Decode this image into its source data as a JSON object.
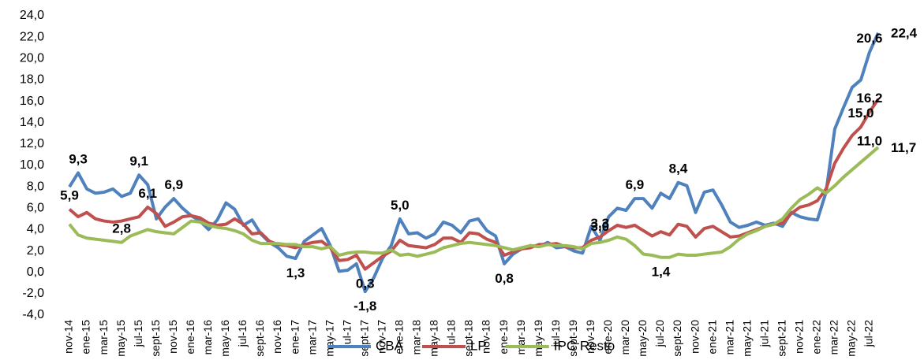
{
  "chart_data": {
    "type": "line",
    "categories": [
      "nov-14",
      null,
      "ene-15",
      null,
      "mar-15",
      null,
      "may-15",
      null,
      "jul-15",
      null,
      "sept-15",
      null,
      "nov-15",
      null,
      "ene-16",
      null,
      "mar-16",
      null,
      "may-16",
      null,
      "jul-16",
      null,
      "sept-16",
      null,
      "nov-16",
      null,
      "ene-17",
      null,
      "mar-17",
      null,
      "may-17",
      null,
      "jul-17",
      null,
      "sept-17",
      null,
      "nov-17",
      null,
      "ene-18",
      null,
      "mar-18",
      null,
      "may-18",
      null,
      "jul-18",
      null,
      "sept-18",
      null,
      "nov-18",
      null,
      "ene-19",
      null,
      "mar-19",
      null,
      "may-19",
      null,
      "jul-19",
      null,
      "sept-19",
      null,
      "nov-19",
      null,
      "ene-20",
      null,
      "mar-20",
      null,
      "may-20",
      null,
      "jul-20",
      null,
      "sept-20",
      null,
      "nov-20",
      null,
      "ene-21",
      null,
      "mar-21",
      null,
      "may-21",
      null,
      "jul-21",
      null,
      "sept-21",
      null,
      "nov-21",
      null,
      "ene-22",
      null,
      "mar-22",
      null,
      "may-22",
      null,
      "jul-22",
      null
    ],
    "series": [
      {
        "name": "CBA",
        "color": "#4f81bd",
        "values": [
          8.0,
          9.3,
          7.8,
          7.4,
          7.5,
          7.8,
          7.1,
          7.4,
          9.1,
          8.2,
          5.0,
          6.1,
          6.9,
          6.0,
          5.3,
          4.8,
          4.0,
          4.9,
          6.5,
          5.9,
          4.4,
          4.9,
          3.6,
          2.8,
          2.3,
          1.5,
          1.3,
          2.9,
          3.5,
          4.1,
          2.5,
          0.1,
          0.2,
          0.8,
          -1.8,
          -0.5,
          1.3,
          2.5,
          5.0,
          3.6,
          3.7,
          3.2,
          3.6,
          4.7,
          4.4,
          3.7,
          4.8,
          5.0,
          3.9,
          3.4,
          0.8,
          1.7,
          2.2,
          2.5,
          2.4,
          2.8,
          2.3,
          2.4,
          2.0,
          1.8,
          4.3,
          3.0,
          5.2,
          6.0,
          5.8,
          6.9,
          6.9,
          6.0,
          7.4,
          6.9,
          8.4,
          8.1,
          5.6,
          7.5,
          7.7,
          6.3,
          4.7,
          4.2,
          4.4,
          4.7,
          4.4,
          4.6,
          4.3,
          5.6,
          5.2,
          5.0,
          4.9,
          7.5,
          13.4,
          15.4,
          17.3,
          18.0,
          20.6,
          22.4
        ],
        "value_labels": [
          null,
          "9,3",
          null,
          null,
          null,
          null,
          null,
          null,
          "9,1",
          null,
          null,
          null,
          "6,9",
          null,
          null,
          null,
          null,
          null,
          null,
          null,
          null,
          null,
          null,
          null,
          null,
          null,
          "1,3",
          null,
          null,
          null,
          null,
          null,
          null,
          null,
          "-1,8",
          null,
          null,
          null,
          "5,0",
          null,
          null,
          null,
          null,
          null,
          null,
          null,
          null,
          null,
          null,
          null,
          "0,8",
          null,
          null,
          null,
          null,
          null,
          null,
          null,
          null,
          null,
          null,
          "3,0",
          null,
          null,
          null,
          "6,9",
          null,
          null,
          null,
          null,
          "8,4",
          null,
          null,
          null,
          null,
          null,
          null,
          null,
          null,
          null,
          null,
          null,
          null,
          null,
          null,
          null,
          null,
          null,
          null,
          null,
          null,
          null,
          "20,6",
          "22,4"
        ]
      },
      {
        "name": "LP",
        "color": "#c0504d",
        "values": [
          5.9,
          5.2,
          5.6,
          5.0,
          4.8,
          4.7,
          4.8,
          5.0,
          5.2,
          6.1,
          5.5,
          4.3,
          4.7,
          5.2,
          5.3,
          5.1,
          4.6,
          4.4,
          4.5,
          5.0,
          4.5,
          3.6,
          3.7,
          2.9,
          2.6,
          2.5,
          2.3,
          2.6,
          2.8,
          2.9,
          2.3,
          1.1,
          1.2,
          1.6,
          0.3,
          0.9,
          1.5,
          2.0,
          3.0,
          2.5,
          2.4,
          2.3,
          2.6,
          3.2,
          3.2,
          2.8,
          3.7,
          3.6,
          3.1,
          2.8,
          1.6,
          1.9,
          2.2,
          2.3,
          2.6,
          2.6,
          2.7,
          2.4,
          2.3,
          2.3,
          3.0,
          3.3,
          3.9,
          4.4,
          4.2,
          4.4,
          3.9,
          3.4,
          3.8,
          3.5,
          4.5,
          4.3,
          3.3,
          4.1,
          4.3,
          3.8,
          3.3,
          3.4,
          3.7,
          4.0,
          4.3,
          4.5,
          4.6,
          5.5,
          6.1,
          6.3,
          6.7,
          7.8,
          10.2,
          11.6,
          12.8,
          13.6,
          15.0,
          16.2
        ],
        "value_labels": [
          "5,9",
          null,
          null,
          null,
          null,
          null,
          null,
          null,
          null,
          "6,1",
          null,
          null,
          null,
          null,
          null,
          null,
          null,
          null,
          null,
          null,
          null,
          null,
          null,
          null,
          null,
          null,
          null,
          null,
          null,
          null,
          null,
          null,
          null,
          null,
          "0,3",
          null,
          null,
          null,
          null,
          null,
          null,
          null,
          null,
          null,
          null,
          null,
          null,
          null,
          null,
          null,
          null,
          null,
          null,
          null,
          null,
          null,
          null,
          null,
          null,
          null,
          null,
          "3,3",
          null,
          null,
          null,
          null,
          null,
          null,
          null,
          null,
          null,
          null,
          null,
          null,
          null,
          null,
          null,
          null,
          null,
          null,
          null,
          null,
          null,
          null,
          null,
          null,
          null,
          null,
          null,
          null,
          null,
          "15,0",
          "16,2"
        ]
      },
      {
        "name": "IPC Resto",
        "color": "#9bbb59",
        "values": [
          4.5,
          3.5,
          3.2,
          3.1,
          3.0,
          2.9,
          2.8,
          3.4,
          3.7,
          4.0,
          3.8,
          3.7,
          3.6,
          4.2,
          4.8,
          4.7,
          4.4,
          4.2,
          4.1,
          3.9,
          3.6,
          3.0,
          2.7,
          2.7,
          2.7,
          2.6,
          2.6,
          2.4,
          2.4,
          2.2,
          2.4,
          1.6,
          1.8,
          1.9,
          1.9,
          1.8,
          1.8,
          2.1,
          1.6,
          1.7,
          1.5,
          1.7,
          1.9,
          2.3,
          2.5,
          2.7,
          2.8,
          2.7,
          2.6,
          2.5,
          2.3,
          2.1,
          2.3,
          2.5,
          2.4,
          2.6,
          2.5,
          2.5,
          2.4,
          2.2,
          2.7,
          2.8,
          3.0,
          3.3,
          3.1,
          2.5,
          1.7,
          1.6,
          1.4,
          1.4,
          1.7,
          1.6,
          1.6,
          1.7,
          1.8,
          1.9,
          2.4,
          3.1,
          3.6,
          3.9,
          4.3,
          4.5,
          5.0,
          6.0,
          6.8,
          7.3,
          7.9,
          7.4,
          8.1,
          8.9,
          9.6,
          10.3,
          11.0,
          11.7
        ],
        "value_labels": [
          null,
          null,
          null,
          null,
          null,
          null,
          "2,8",
          null,
          null,
          null,
          null,
          null,
          null,
          null,
          null,
          null,
          null,
          null,
          null,
          null,
          null,
          null,
          null,
          null,
          null,
          null,
          null,
          null,
          null,
          null,
          null,
          null,
          null,
          null,
          null,
          null,
          null,
          null,
          null,
          null,
          null,
          null,
          null,
          null,
          null,
          null,
          null,
          null,
          null,
          null,
          null,
          null,
          null,
          null,
          null,
          null,
          null,
          null,
          null,
          null,
          null,
          null,
          null,
          null,
          null,
          null,
          null,
          null,
          "1,4",
          null,
          null,
          null,
          null,
          null,
          null,
          null,
          null,
          null,
          null,
          null,
          null,
          null,
          null,
          null,
          null,
          null,
          null,
          null,
          null,
          null,
          null,
          null,
          "11,0",
          "11,7"
        ]
      }
    ],
    "ylim": [
      -4,
      24
    ],
    "yticks": [
      {
        "value": -4,
        "label": "-4,0"
      },
      {
        "value": -2,
        "label": "-2,0"
      },
      {
        "value": 0,
        "label": "0,0"
      },
      {
        "value": 2,
        "label": "2,0"
      },
      {
        "value": 4,
        "label": "4,0"
      },
      {
        "value": 6,
        "label": "6,0"
      },
      {
        "value": 8,
        "label": "8,0"
      },
      {
        "value": 10,
        "label": "10,0"
      },
      {
        "value": 12,
        "label": "12,0"
      },
      {
        "value": 14,
        "label": "14,0"
      },
      {
        "value": 16,
        "label": "16,0"
      },
      {
        "value": 18,
        "label": "18,0"
      },
      {
        "value": 20,
        "label": "20,0"
      },
      {
        "value": 22,
        "label": "22,0"
      },
      {
        "value": 24,
        "label": "24,0"
      }
    ],
    "grid": false,
    "legend": "bottom"
  }
}
